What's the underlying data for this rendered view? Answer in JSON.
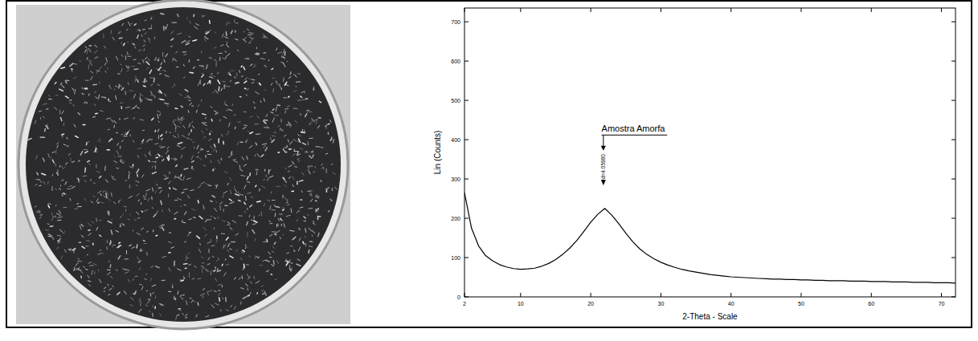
{
  "chart_data": {
    "type": "line",
    "x_label": "2-Theta - Scale",
    "y_label": "Lin (Counts)",
    "xlim": [
      2,
      72
    ],
    "ylim": [
      0,
      735
    ],
    "xticks": [
      2,
      10,
      20,
      30,
      40,
      50,
      60,
      70
    ],
    "yticks": [
      0,
      100,
      200,
      300,
      400,
      500,
      600,
      700
    ],
    "grid": false,
    "series": [
      {
        "name": "Amostra Amorfa",
        "color": "#000000",
        "x": [
          2,
          3,
          4,
          5,
          6,
          7,
          8,
          9,
          10,
          11,
          12,
          13,
          14,
          15,
          16,
          17,
          18,
          19,
          20,
          21,
          22,
          23,
          24,
          25,
          26,
          27,
          28,
          29,
          30,
          31,
          32,
          33,
          34,
          35,
          36,
          37,
          38,
          39,
          40,
          41,
          42,
          43,
          44,
          45,
          46,
          47,
          48,
          49,
          50,
          51,
          52,
          53,
          54,
          55,
          56,
          57,
          58,
          59,
          60,
          61,
          62,
          63,
          64,
          65,
          66,
          67,
          68,
          69,
          70,
          71,
          72
        ],
        "values": [
          265,
          175,
          130,
          105,
          92,
          82,
          76,
          72,
          70,
          71,
          73,
          78,
          85,
          95,
          108,
          124,
          143,
          166,
          190,
          210,
          225,
          208,
          186,
          162,
          140,
          122,
          108,
          97,
          88,
          81,
          75,
          70,
          66,
          63,
          60,
          57,
          55,
          53,
          51,
          50,
          49,
          48,
          47,
          46,
          45,
          45,
          44,
          44,
          43,
          43,
          42,
          42,
          41,
          41,
          41,
          40,
          40,
          40,
          39,
          39,
          39,
          38,
          38,
          38,
          37,
          37,
          37,
          36,
          36,
          36,
          35
        ]
      }
    ],
    "annotations": [
      {
        "text": "Amostra Amorfa",
        "x": 22,
        "y": 420
      },
      {
        "text": "d=4.05980",
        "x": 21.8,
        "y": 300
      }
    ]
  }
}
